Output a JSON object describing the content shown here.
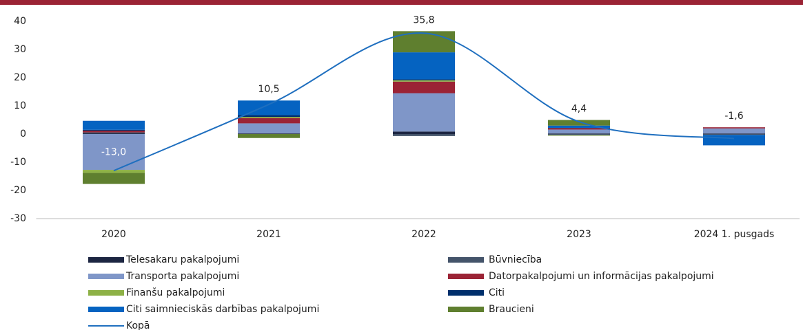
{
  "chart_data": {
    "type": "bar",
    "stacked": true,
    "categories": [
      "2020",
      "2021",
      "2022",
      "2023",
      "2024 1. pusgads"
    ],
    "series": [
      {
        "name": "Telesakaru pakalpojumi",
        "color": "#1c2541",
        "values": [
          0.3,
          0.2,
          0.9,
          0.2,
          0.2
        ]
      },
      {
        "name": "Būvniecība",
        "color": "#44546a",
        "values": [
          0.3,
          0.1,
          -0.7,
          -0.4,
          -0.3
        ]
      },
      {
        "name": "Transporta pakalpojumi",
        "color": "#7f96c8",
        "values": [
          -12.7,
          3.5,
          13.6,
          1.4,
          1.8
        ]
      },
      {
        "name": "Datorpakalpojumi un informācijas pakalpojumi",
        "color": "#9b2335",
        "values": [
          0.6,
          1.9,
          4.1,
          0.5,
          0.4
        ]
      },
      {
        "name": "Finanšu pakalpojumi",
        "color": "#8db146",
        "values": [
          -1.1,
          0.4,
          0.5,
          -0.2,
          0
        ]
      },
      {
        "name": "Citi",
        "color": "#002f6c",
        "values": [
          0.3,
          0.6,
          0.3,
          0.1,
          0
        ]
      },
      {
        "name": "Citi saimnieciskās darbības pakalpojumi",
        "color": "#0563c1",
        "values": [
          3.2,
          5.2,
          9.6,
          0.8,
          -3.7
        ]
      },
      {
        "name": "Braucieni",
        "color": "#5f7f2f",
        "values": [
          -3.9,
          -1.4,
          7.5,
          2.0,
          0
        ]
      },
      {
        "name": "Kopā",
        "type": "line",
        "color": "#1f6fbf",
        "values": [
          -13.0,
          10.5,
          35.8,
          4.4,
          -1.6
        ],
        "value_labels": [
          "-13,0",
          "10,5",
          "35,8",
          "4,4",
          "-1,6"
        ]
      }
    ],
    "ylim": [
      -30,
      40
    ],
    "yticks": [
      -30,
      -20,
      -10,
      0,
      10,
      20,
      30,
      40
    ],
    "grid": false
  }
}
